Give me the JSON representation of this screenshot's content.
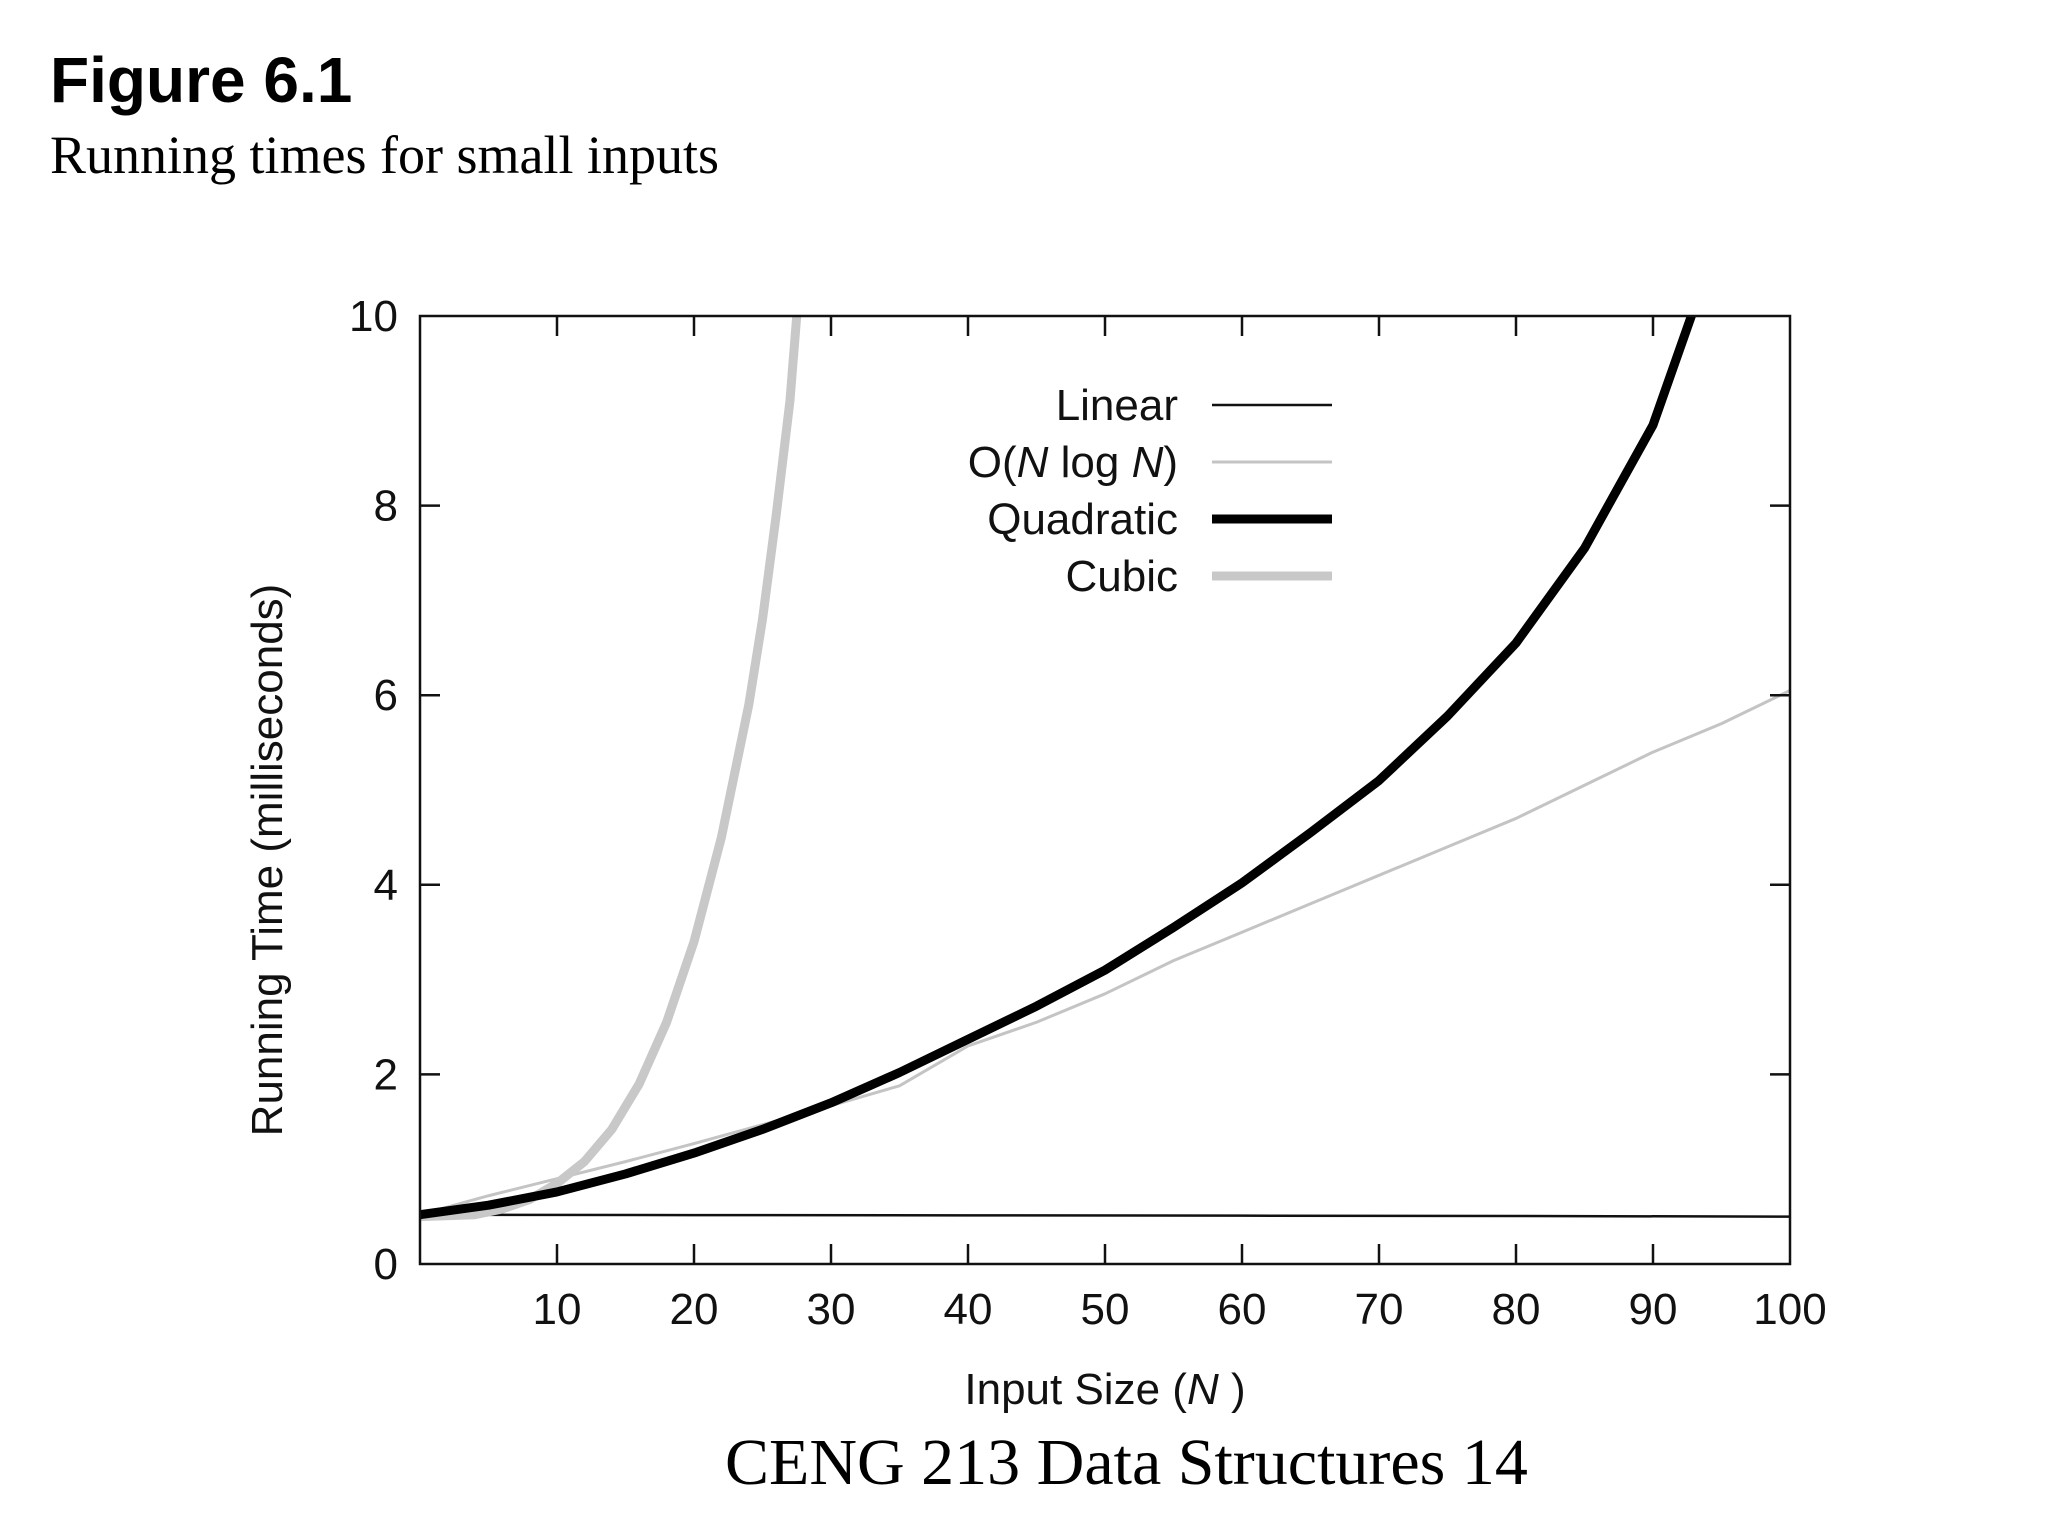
{
  "figure": {
    "title": "Figure 6.1",
    "subtitle": "Running times for small inputs"
  },
  "footer": {
    "text": "CENG 213 Data Structures 14"
  },
  "chart_data": {
    "type": "line",
    "xlabel_text": "Input Size (",
    "xlabel_var": "N",
    "xlabel_end": ")",
    "ylabel": "Running Time (milliseconds)",
    "xlim": [
      0,
      100
    ],
    "ylim": [
      0,
      10
    ],
    "x_ticks": [
      10,
      20,
      30,
      40,
      50,
      60,
      70,
      80,
      90,
      100
    ],
    "y_ticks": [
      0,
      2,
      4,
      6,
      8,
      10
    ],
    "grid": false,
    "legend_position": "top-center",
    "series": [
      {
        "name": "Linear",
        "legend_parts": [
          {
            "t": "Linear",
            "italic": false
          }
        ],
        "color": "#111111",
        "width": 2.5,
        "x": [
          0,
          20,
          40,
          60,
          80,
          100
        ],
        "y": [
          0.52,
          0.516,
          0.513,
          0.51,
          0.506,
          0.5
        ]
      },
      {
        "name": "O(N log N)",
        "legend_parts": [
          {
            "t": "O(",
            "italic": false
          },
          {
            "t": "N",
            "italic": true
          },
          {
            "t": " log ",
            "italic": false
          },
          {
            "t": "N",
            "italic": true
          },
          {
            "t": ")",
            "italic": false
          }
        ],
        "color": "#c4c4c4",
        "width": 3,
        "x": [
          0,
          5,
          10,
          15,
          20,
          25,
          30,
          35,
          40,
          45,
          50,
          55,
          60,
          65,
          70,
          75,
          80,
          85,
          90,
          95,
          100
        ],
        "y": [
          0.52,
          0.72,
          0.9,
          1.08,
          1.27,
          1.47,
          1.67,
          1.88,
          2.3,
          2.55,
          2.85,
          3.2,
          3.5,
          3.8,
          4.1,
          4.4,
          4.7,
          5.05,
          5.4,
          5.7,
          6.05
        ]
      },
      {
        "name": "Quadratic",
        "legend_parts": [
          {
            "t": "Quadratic",
            "italic": false
          }
        ],
        "color": "#000000",
        "width": 9,
        "x": [
          0,
          5,
          10,
          15,
          20,
          25,
          30,
          35,
          40,
          45,
          50,
          55,
          60,
          65,
          70,
          75,
          80,
          85,
          90,
          92.8
        ],
        "y": [
          0.52,
          0.62,
          0.76,
          0.95,
          1.17,
          1.42,
          1.7,
          2.02,
          2.37,
          2.72,
          3.1,
          3.55,
          4.02,
          4.55,
          5.1,
          5.78,
          6.55,
          7.55,
          8.85,
          10.0
        ]
      },
      {
        "name": "Cubic",
        "legend_parts": [
          {
            "t": "Cubic",
            "italic": false
          }
        ],
        "color": "#c8c8c8",
        "width": 9,
        "x": [
          0,
          4,
          6,
          8,
          10,
          12,
          14,
          16,
          18,
          20,
          22,
          24,
          25,
          26,
          27,
          27.5
        ],
        "y": [
          0.5,
          0.52,
          0.58,
          0.68,
          0.85,
          1.08,
          1.42,
          1.9,
          2.55,
          3.4,
          4.5,
          5.9,
          6.8,
          7.9,
          9.1,
          10.0
        ]
      }
    ]
  }
}
